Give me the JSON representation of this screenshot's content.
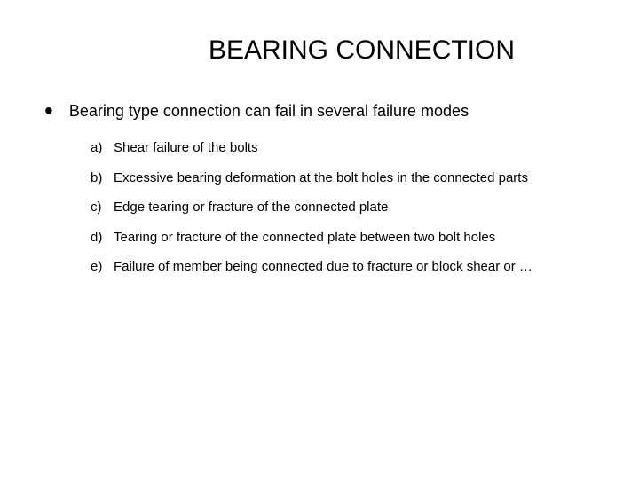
{
  "title": "BEARING CONNECTION",
  "main_bullet": "•",
  "main_text": "Bearing type connection can fail in several failure modes",
  "sub_items": [
    {
      "label": "a)",
      "text": "Shear failure of the bolts"
    },
    {
      "label": "b)",
      "text": "Excessive bearing deformation at the bolt holes in the connected parts"
    },
    {
      "label": "c)",
      "text": "Edge tearing or fracture of the connected plate"
    },
    {
      "label": "d)",
      "text": "Tearing or fracture of the connected plate between two bolt holes"
    },
    {
      "label": "e)",
      "text": "Failure of member being connected due to fracture or block shear or …"
    }
  ],
  "colors": {
    "background": "#ffffff",
    "text": "#000000"
  },
  "typography": {
    "title_fontsize": 30,
    "main_fontsize": 18,
    "sub_fontsize": 15,
    "font_family": "Arial"
  }
}
